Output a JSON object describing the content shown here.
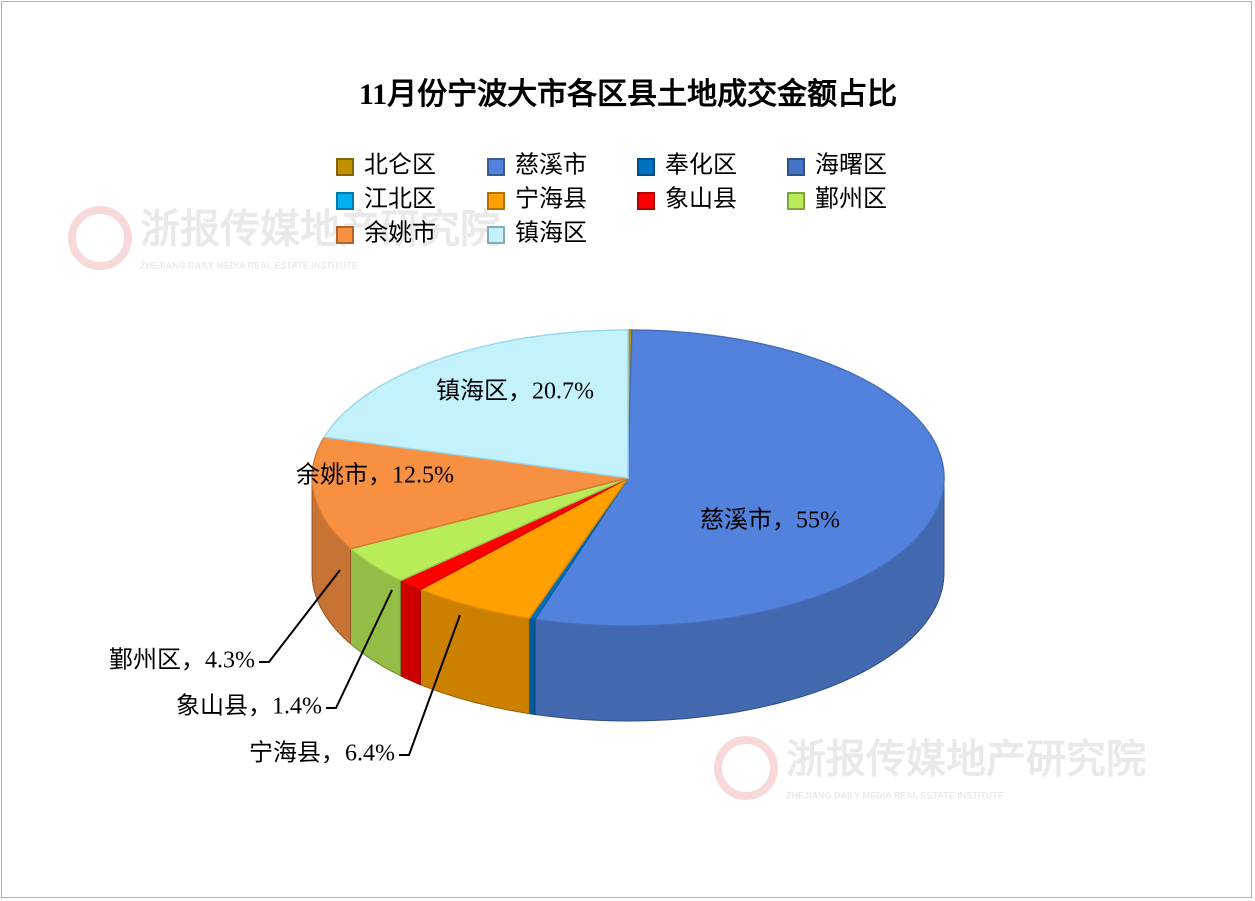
{
  "chart_data": {
    "type": "pie3d",
    "title": "11月份宁波大市各区县土地成交金额占比",
    "categories": [
      "北仑区",
      "慈溪市",
      "奉化区",
      "海曙区",
      "江北区",
      "宁海县",
      "象山县",
      "鄞州区",
      "余姚市",
      "镇海区"
    ],
    "values": [
      0.2,
      55,
      0.3,
      0,
      0,
      6.4,
      1.4,
      4.3,
      12.5,
      20.7
    ],
    "value_labels": [
      null,
      "慈溪市，55%",
      null,
      null,
      null,
      "宁海县，6.4%",
      "象山县，1.4%",
      "鄞州区，4.3%",
      "余姚市，12.5%",
      "镇海区，20.7%"
    ],
    "colors": [
      "#C09000",
      "#5282DC",
      "#0070C0",
      "#4472C4",
      "#00B0F0",
      "#FFA000",
      "#FF0000",
      "#B8EC58",
      "#F79040",
      "#C4F2FC"
    ],
    "legend": "top",
    "watermark": {
      "name": "浙报传媒地产研究院",
      "subtitle": "ZHEJIANG DAILY MEDIA REAL ESTATE INSTITUTE"
    }
  }
}
